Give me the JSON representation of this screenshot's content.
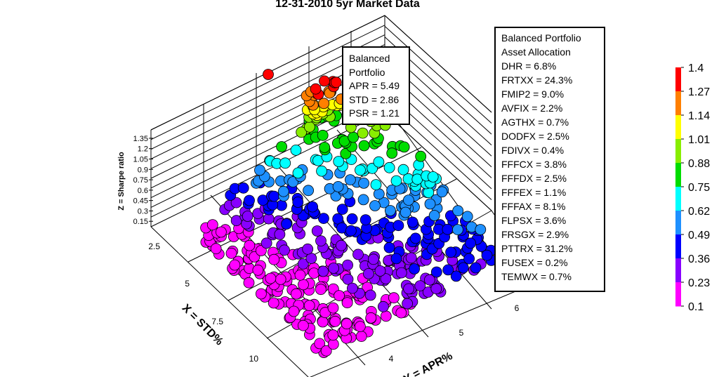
{
  "chart_data": {
    "type": "scatter",
    "title": "12-31-2010 5yr Market Data",
    "x_axis": {
      "label": "X = STD%",
      "ticks": [
        "2.5",
        "5",
        "7.5",
        "10"
      ]
    },
    "y_axis": {
      "label": "Y = APR%",
      "ticks": [
        "4",
        "5",
        "6"
      ]
    },
    "z_axis": {
      "label": "Z = Sharpe ratio",
      "ticks": [
        "0.15",
        "0.3",
        "0.45",
        "0.6",
        "0.75",
        "0.9",
        "1.05",
        "1.2",
        "1.35"
      ]
    },
    "colorbar": {
      "ticks": [
        "1.4",
        "1.27",
        "1.14",
        "1.01",
        "0.88",
        "0.75",
        "0.62",
        "0.49",
        "0.36",
        "0.23",
        "0.1"
      ],
      "colors": [
        "#ff0000",
        "#ff7f00",
        "#ffff00",
        "#88ee00",
        "#00dd00",
        "#00ffff",
        "#1e90ff",
        "#0000ff",
        "#8800ff",
        "#ff00ff"
      ]
    },
    "balanced_portfolio": {
      "std": 2.86,
      "apr": 5.49,
      "psr": 1.21
    }
  },
  "stats_box": {
    "line1": "Balanced",
    "line2": "Portfolio",
    "apr": "APR = 5.49",
    "std": "STD = 2.86",
    "psr": "PSR = 1.21"
  },
  "allocation_box": {
    "title_line1": "Balanced Portfolio",
    "title_line2": "Asset Allocation",
    "items": [
      "DHR = 6.8%",
      "FRTXX = 24.3%",
      "FMIP2 = 9.0%",
      "AVFIX = 2.2%",
      "AGTHX = 0.7%",
      "DODFX = 2.5%",
      "FDIVX = 0.4%",
      "FFFCX = 3.8%",
      "FFFDX = 2.5%",
      "FFFEX = 1.1%",
      "FFFAX = 8.1%",
      "FLPSX = 3.6%",
      "FRSGX = 2.9%",
      "PTTRX = 31.2%",
      "FUSEX = 0.2%",
      "TEMWX = 0.7%"
    ]
  }
}
